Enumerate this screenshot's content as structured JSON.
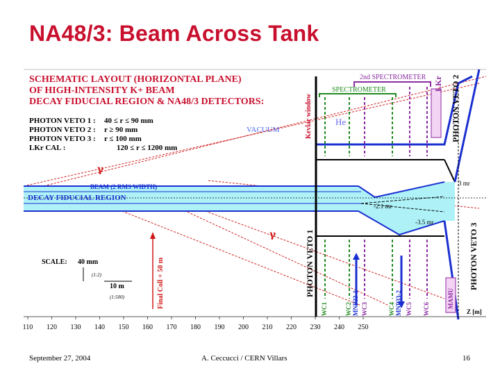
{
  "slide": {
    "title": "NA48/3: Beam Across Tank",
    "footer_left": "September 27, 2004",
    "footer_center": "A. Ceccucci / CERN    Villars",
    "footer_right": "16"
  },
  "diagram": {
    "heading_lines": [
      "SCHEMATIC LAYOUT (HORIZONTAL PLANE)",
      "OF HIGH-INTENSITY K+ BEAM",
      "DECAY FIDUCIAL REGION & NA48/3 DETECTORS:"
    ],
    "specs": [
      {
        "name": "PHOTON VETO 1 :",
        "value": "40 ≤ r ≤ 90 mm"
      },
      {
        "name": "PHOTON VETO 2 :",
        "value": "r ≥ 90 mm"
      },
      {
        "name": "PHOTON VETO 3 :",
        "value": "r ≤ 100 mm"
      },
      {
        "name": "LKr CAL :",
        "value": "120 ≤ r ≤ 1200 mm"
      }
    ],
    "vacuum_label": "VACUUM",
    "kevlar_label": "Kevlar window",
    "he_label": "He",
    "spectrometer_label": "SPECTROMETER",
    "spectrometer2_label": "2nd SPECTROMETER",
    "lkr_label": "LKr",
    "photon_veto_2": "PHOTON VETO 2",
    "photon_veto_1": "PHOTON VETO 1",
    "photon_veto_3": "PHOTON VETO 3",
    "gamma": "γ",
    "beam_label": "BEAM (2 RMS WIDTH)",
    "decay_label": "DECAY FIDUCIAL REGION",
    "angles": [
      "-2.1 mr",
      "-3.5 mr",
      "3 mr"
    ],
    "final_coll": "Final Coll + 50 m",
    "scale_label": "SCALE:",
    "scale_y_value": "40 mm",
    "scale_y_ratio": "(1:2)",
    "scale_x_value": "10 m",
    "scale_x_ratio": "(1:500)",
    "chambers": [
      "WC1",
      "WC2",
      "MNP33-1",
      "WC3",
      "WC4",
      "MNP33-2",
      "WC5",
      "WC6",
      "MAMU"
    ],
    "axis_label": "Z [m]",
    "axis_ticks": [
      "110",
      "120",
      "130",
      "140",
      "150",
      "160",
      "170",
      "180",
      "190",
      "200",
      "210",
      "220",
      "230",
      "240",
      "250"
    ],
    "colors": {
      "title": "#c8102e",
      "heading": "#c8102e",
      "blue": "#1a2fd0",
      "beam": "#aef2f8",
      "green": "#1f8a1f",
      "purple": "#8a2aa0",
      "red": "#d01818"
    }
  }
}
